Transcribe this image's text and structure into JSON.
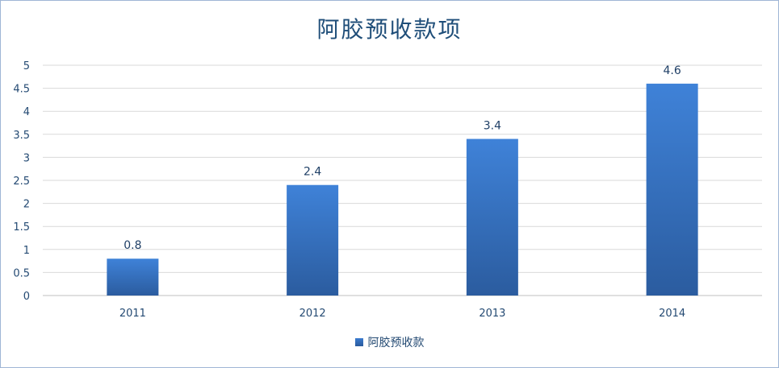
{
  "chart_data": {
    "type": "bar",
    "title": "阿胶预收款项",
    "categories": [
      "2011",
      "2012",
      "2013",
      "2014"
    ],
    "series": [
      {
        "name": "阿胶预收款",
        "values": [
          0.8,
          2.4,
          3.4,
          4.6
        ]
      }
    ],
    "data_labels": [
      "0.8",
      "2.4",
      "3.4",
      "4.6"
    ],
    "y_ticks": [
      "0",
      "0.5",
      "1",
      "1.5",
      "2",
      "2.5",
      "3",
      "3.5",
      "4",
      "4.5",
      "5"
    ],
    "ylim": [
      0,
      5
    ],
    "grid": true,
    "legend_position": "bottom",
    "bar_color": "#3a78c9"
  }
}
